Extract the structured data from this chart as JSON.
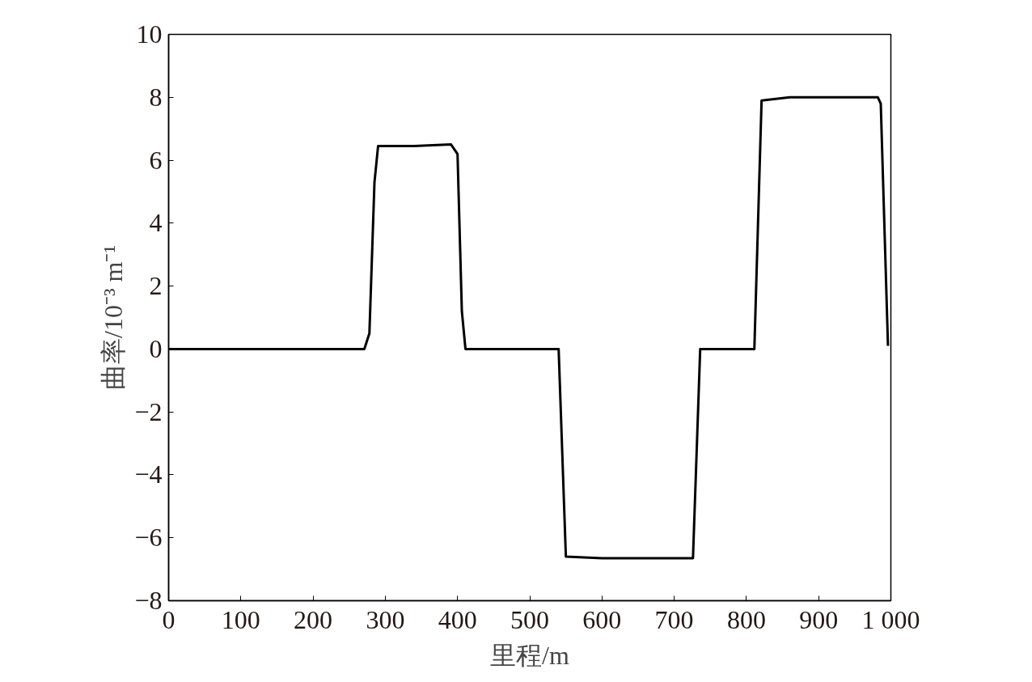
{
  "chart_data": {
    "type": "line",
    "xlabel": "里程/m",
    "ylabel": "曲率/10⁻³ m⁻¹",
    "color": "#000000",
    "grid": false,
    "marker": "none",
    "line_style": "solid",
    "x": [
      0,
      50,
      100,
      150,
      200,
      250,
      271,
      278,
      285,
      290,
      340,
      391,
      400,
      406,
      411,
      460,
      540,
      550,
      600,
      650,
      726,
      736,
      780,
      811,
      821,
      860,
      920,
      982,
      986,
      996
    ],
    "values": [
      0,
      0,
      0,
      0,
      0,
      0,
      0,
      0.5,
      5.3,
      6.45,
      6.45,
      6.5,
      6.2,
      1.2,
      0,
      0,
      0,
      -6.6,
      -6.65,
      -6.65,
      -6.65,
      0,
      0,
      0,
      7.9,
      8.0,
      8.0,
      8.0,
      7.8,
      0.1
    ],
    "xlim": [
      0,
      1000
    ],
    "ylim": [
      -8,
      10
    ],
    "xticks": [
      0,
      100,
      200,
      300,
      400,
      500,
      600,
      700,
      800,
      900,
      {
        "value": 1000,
        "label": "1 000"
      }
    ],
    "yticks": [
      {
        "value": -8,
        "label": "−8"
      },
      {
        "value": -6,
        "label": "−6"
      },
      {
        "value": -4,
        "label": "−4"
      },
      {
        "value": -2,
        "label": "−2"
      },
      0,
      2,
      4,
      6,
      8,
      10
    ]
  }
}
